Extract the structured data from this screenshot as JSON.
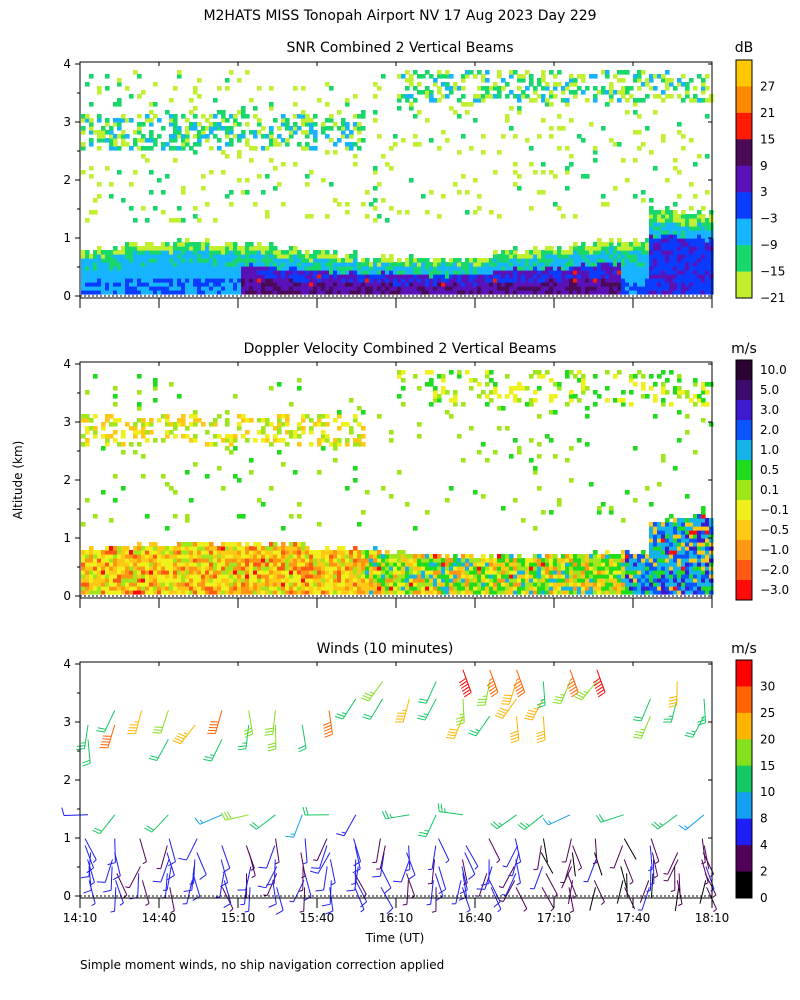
{
  "title": "M2HATS MISS Tonopah Airport NV  17 Aug 2023 Day 229",
  "footnote": "Simple moment winds, no ship navigation correction applied",
  "xlabel": "Time (UT)",
  "ylabel": "Altitude (km)",
  "chart_data": [
    {
      "type": "heatmap",
      "title": "SNR Combined 2 Vertical Beams",
      "xlabel": "Time (UT)",
      "ylabel": "Altitude (km)",
      "xlim": [
        "14:10",
        "18:10"
      ],
      "ylim": [
        0,
        4
      ],
      "yticks": [
        0,
        1,
        2,
        3,
        4
      ],
      "colorbar": {
        "unit": "dB",
        "labels": [
          "27",
          "21",
          "15",
          "9",
          "3",
          "−3",
          "−9",
          "−15",
          "−21"
        ],
        "colors": [
          "#ffc800",
          "#ff8a00",
          "#ff1a00",
          "#4b0a58",
          "#5a12b8",
          "#0a3cff",
          "#17b4ff",
          "#18d86b",
          "#c2f030"
        ]
      },
      "layers": [
        {
          "description": "near-surface layer, strongest SNR 3 to 15 dB",
          "altitude_km": [
            0.1,
            0.9
          ]
        },
        {
          "description": "scattered echoes",
          "altitude_km": [
            2.5,
            3.2
          ]
        },
        {
          "description": "scattered echoes aloft",
          "altitude_km": [
            3.4,
            3.9
          ]
        }
      ]
    },
    {
      "type": "heatmap",
      "title": "Doppler Velocity Combined 2 Vertical Beams",
      "xlabel": "Time (UT)",
      "ylabel": "Altitude (km)",
      "xlim": [
        "14:10",
        "18:10"
      ],
      "ylim": [
        0,
        4
      ],
      "yticks": [
        0,
        1,
        2,
        3,
        4
      ],
      "colorbar": {
        "unit": "m/s",
        "labels": [
          "10.0",
          "5.0",
          "3.0",
          "2.0",
          "1.0",
          "0.5",
          "0.1",
          "−0.1",
          "−0.5",
          "−1.0",
          "−2.0",
          "−3.0"
        ],
        "colors": [
          "#2a0430",
          "#3a0a6e",
          "#3d1ad0",
          "#0a55ff",
          "#15b4e8",
          "#1fdc1f",
          "#a0e61c",
          "#f0f01c",
          "#ffc814",
          "#ff9614",
          "#ff5a14",
          "#ff0a0a"
        ]
      }
    },
    {
      "type": "barbs",
      "title": "Winds (10 minutes)",
      "xlabel": "Time (UT)",
      "ylabel": "Altitude (km)",
      "xlim": [
        "14:10",
        "18:10"
      ],
      "ylim": [
        0,
        4
      ],
      "yticks": [
        0,
        1,
        2,
        3,
        4
      ],
      "xticks": [
        "14:10",
        "14:40",
        "15:10",
        "15:40",
        "16:10",
        "16:40",
        "17:10",
        "17:40",
        "18:10"
      ],
      "colorbar": {
        "unit": "m/s",
        "labels": [
          "30",
          "25",
          "20",
          "15",
          "10",
          "8",
          "4",
          "2",
          "0"
        ],
        "colors": [
          "#ff0000",
          "#ff6400",
          "#ffb400",
          "#82e01e",
          "#14c864",
          "#14a0f0",
          "#1e1ef5",
          "#52005a",
          "#000000"
        ]
      }
    }
  ]
}
